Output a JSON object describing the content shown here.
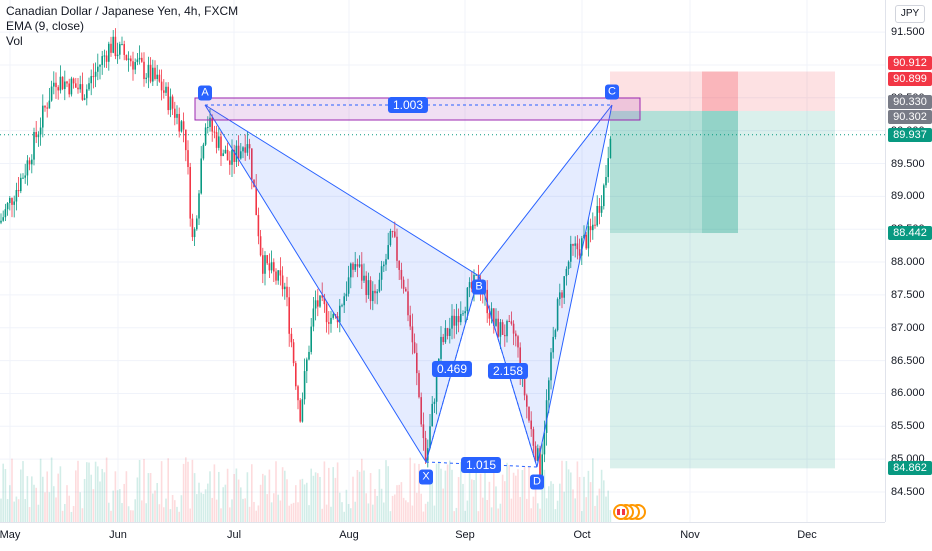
{
  "legend": {
    "symbol": "Canadian Dollar / Japanese Yen, 4h, FXCM",
    "ema": "EMA (9, close)",
    "vol": "Vol"
  },
  "currency": "JPY",
  "price_axis": {
    "ticks": [
      "91.500",
      "91.000",
      "90.500",
      "90.000",
      "89.500",
      "89.000",
      "88.500",
      "88.000",
      "87.500",
      "87.000",
      "86.500",
      "86.000",
      "85.500",
      "85.000",
      "84.500"
    ],
    "tags": [
      {
        "value": "90.912",
        "color": "#f23645"
      },
      {
        "value": "90.899",
        "color": "#f23645"
      },
      {
        "value": "90.330",
        "color": "#787b86"
      },
      {
        "value": "90.302",
        "color": "#787b86"
      },
      {
        "value": "89.937",
        "color": "#089981"
      },
      {
        "value": "88.442",
        "color": "#089981"
      },
      {
        "value": "84.862",
        "color": "#089981"
      }
    ]
  },
  "time_axis": [
    "May",
    "Jun",
    "Jul",
    "Aug",
    "Sep",
    "Oct",
    "Nov",
    "Dec"
  ],
  "pattern": {
    "points": [
      {
        "name": "X",
        "price": 84.95
      },
      {
        "name": "A",
        "price": 90.2
      },
      {
        "name": "B",
        "price": 87.72
      },
      {
        "name": "C",
        "price": 90.3
      },
      {
        "name": "D",
        "price": 84.86
      }
    ],
    "ratios": [
      "1.003",
      "0.469",
      "2.158",
      "1.015"
    ]
  },
  "position": {
    "entry": 90.3,
    "stop": 90.9,
    "target": 84.86
  },
  "colors": {
    "up": "#089981",
    "down": "#f23645",
    "pattern": "#2962ff"
  }
}
